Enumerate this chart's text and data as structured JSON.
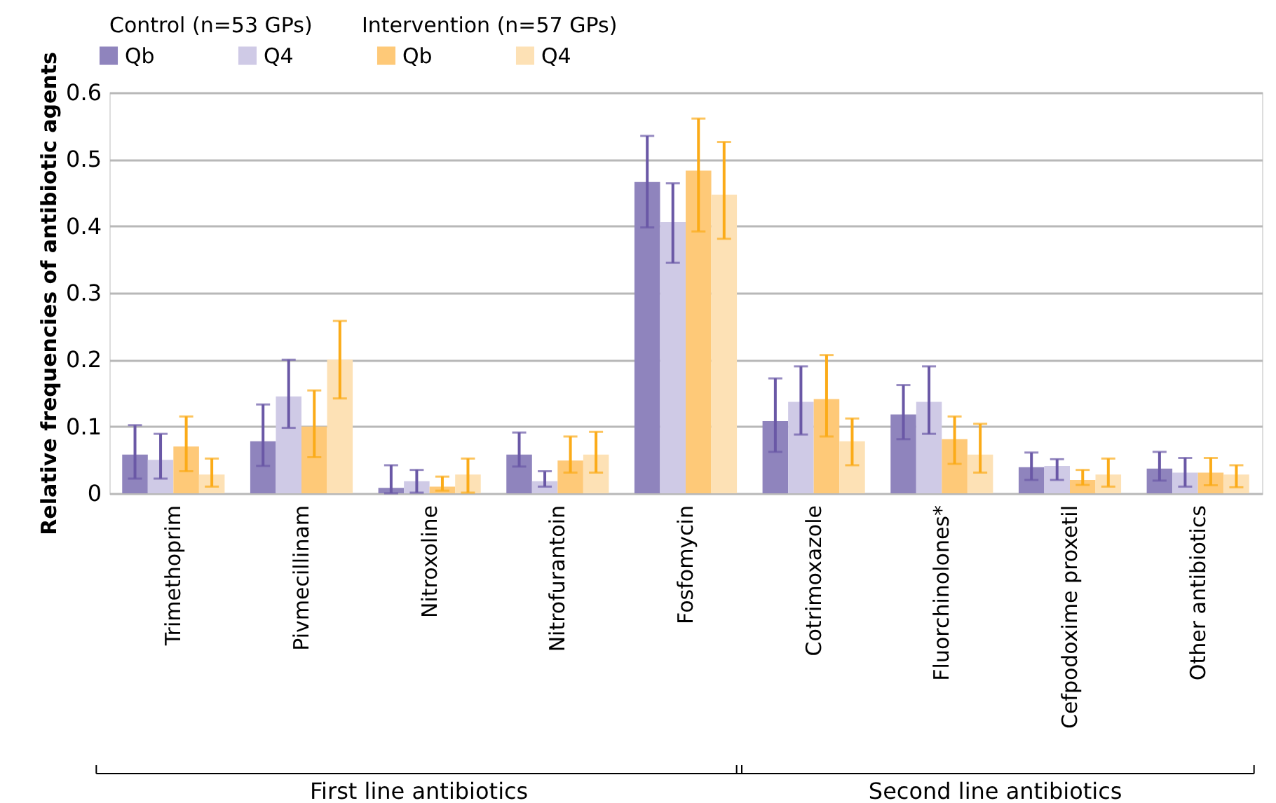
{
  "chart_data": {
    "type": "bar",
    "categories": [
      "Trimethoprim",
      "Pivmecillinam",
      "Nitroxoline",
      "Nitrofurantoin",
      "Fosfomycin",
      "Cotrimoxazole",
      "Fluorchinolones*",
      "Cefpodoxime proxetil",
      "Other antibiotics"
    ],
    "ylabel": "Relative frequencies of antibiotic agents",
    "ylim": [
      0,
      0.6
    ],
    "yticks": [
      0,
      0.1,
      0.2,
      0.3,
      0.4,
      0.5,
      0.6
    ],
    "grid": "y",
    "legend": "top left",
    "series": [
      {
        "name": "Qb",
        "color": "#8f84bd",
        "values": [
          0.058,
          0.078,
          0.008,
          0.058,
          0.466,
          0.108,
          0.118,
          0.039,
          0.037
        ],
        "errors": [
          [
            0.022,
            0.102
          ],
          [
            0.041,
            0.133
          ],
          [
            0.0,
            0.042
          ],
          [
            0.04,
            0.091
          ],
          [
            0.398,
            0.535
          ],
          [
            0.062,
            0.172
          ],
          [
            0.081,
            0.162
          ],
          [
            0.02,
            0.061
          ],
          [
            0.019,
            0.062
          ]
        ]
      },
      {
        "name": "Q4",
        "color": "#cfcae6",
        "values": [
          0.05,
          0.145,
          0.018,
          0.018,
          0.406,
          0.137,
          0.137,
          0.041,
          0.031
        ],
        "errors": [
          [
            0.022,
            0.089
          ],
          [
            0.098,
            0.2
          ],
          [
            0.001,
            0.035
          ],
          [
            0.01,
            0.033
          ],
          [
            0.345,
            0.464
          ],
          [
            0.088,
            0.19
          ],
          [
            0.089,
            0.19
          ],
          [
            0.02,
            0.051
          ],
          [
            0.01,
            0.053
          ]
        ]
      },
      {
        "name": "Qb",
        "color": "#fec978",
        "values": [
          0.07,
          0.1,
          0.01,
          0.049,
          0.483,
          0.141,
          0.081,
          0.02,
          0.031
        ],
        "errors": [
          [
            0.033,
            0.115
          ],
          [
            0.054,
            0.154
          ],
          [
            0.004,
            0.025
          ],
          [
            0.031,
            0.085
          ],
          [
            0.392,
            0.561
          ],
          [
            0.085,
            0.207
          ],
          [
            0.044,
            0.115
          ],
          [
            0.0125,
            0.035
          ],
          [
            0.012,
            0.053
          ]
        ]
      },
      {
        "name": "Q4",
        "color": "#fde1b5",
        "values": [
          0.028,
          0.2,
          0.028,
          0.058,
          0.447,
          0.078,
          0.058,
          0.028,
          0.028
        ],
        "errors": [
          [
            0.01,
            0.052
          ],
          [
            0.142,
            0.258
          ],
          [
            0.001,
            0.052
          ],
          [
            0.031,
            0.092
          ],
          [
            0.381,
            0.526
          ],
          [
            0.042,
            0.112
          ],
          [
            0.031,
            0.104
          ],
          [
            0.01,
            0.052
          ],
          [
            0.009,
            0.042
          ]
        ]
      }
    ],
    "annotations": [
      "Control (n=53 GPs)",
      "Intervention (n=57 GPs)",
      "First line antibiotics",
      "Second line antibiotics"
    ]
  }
}
